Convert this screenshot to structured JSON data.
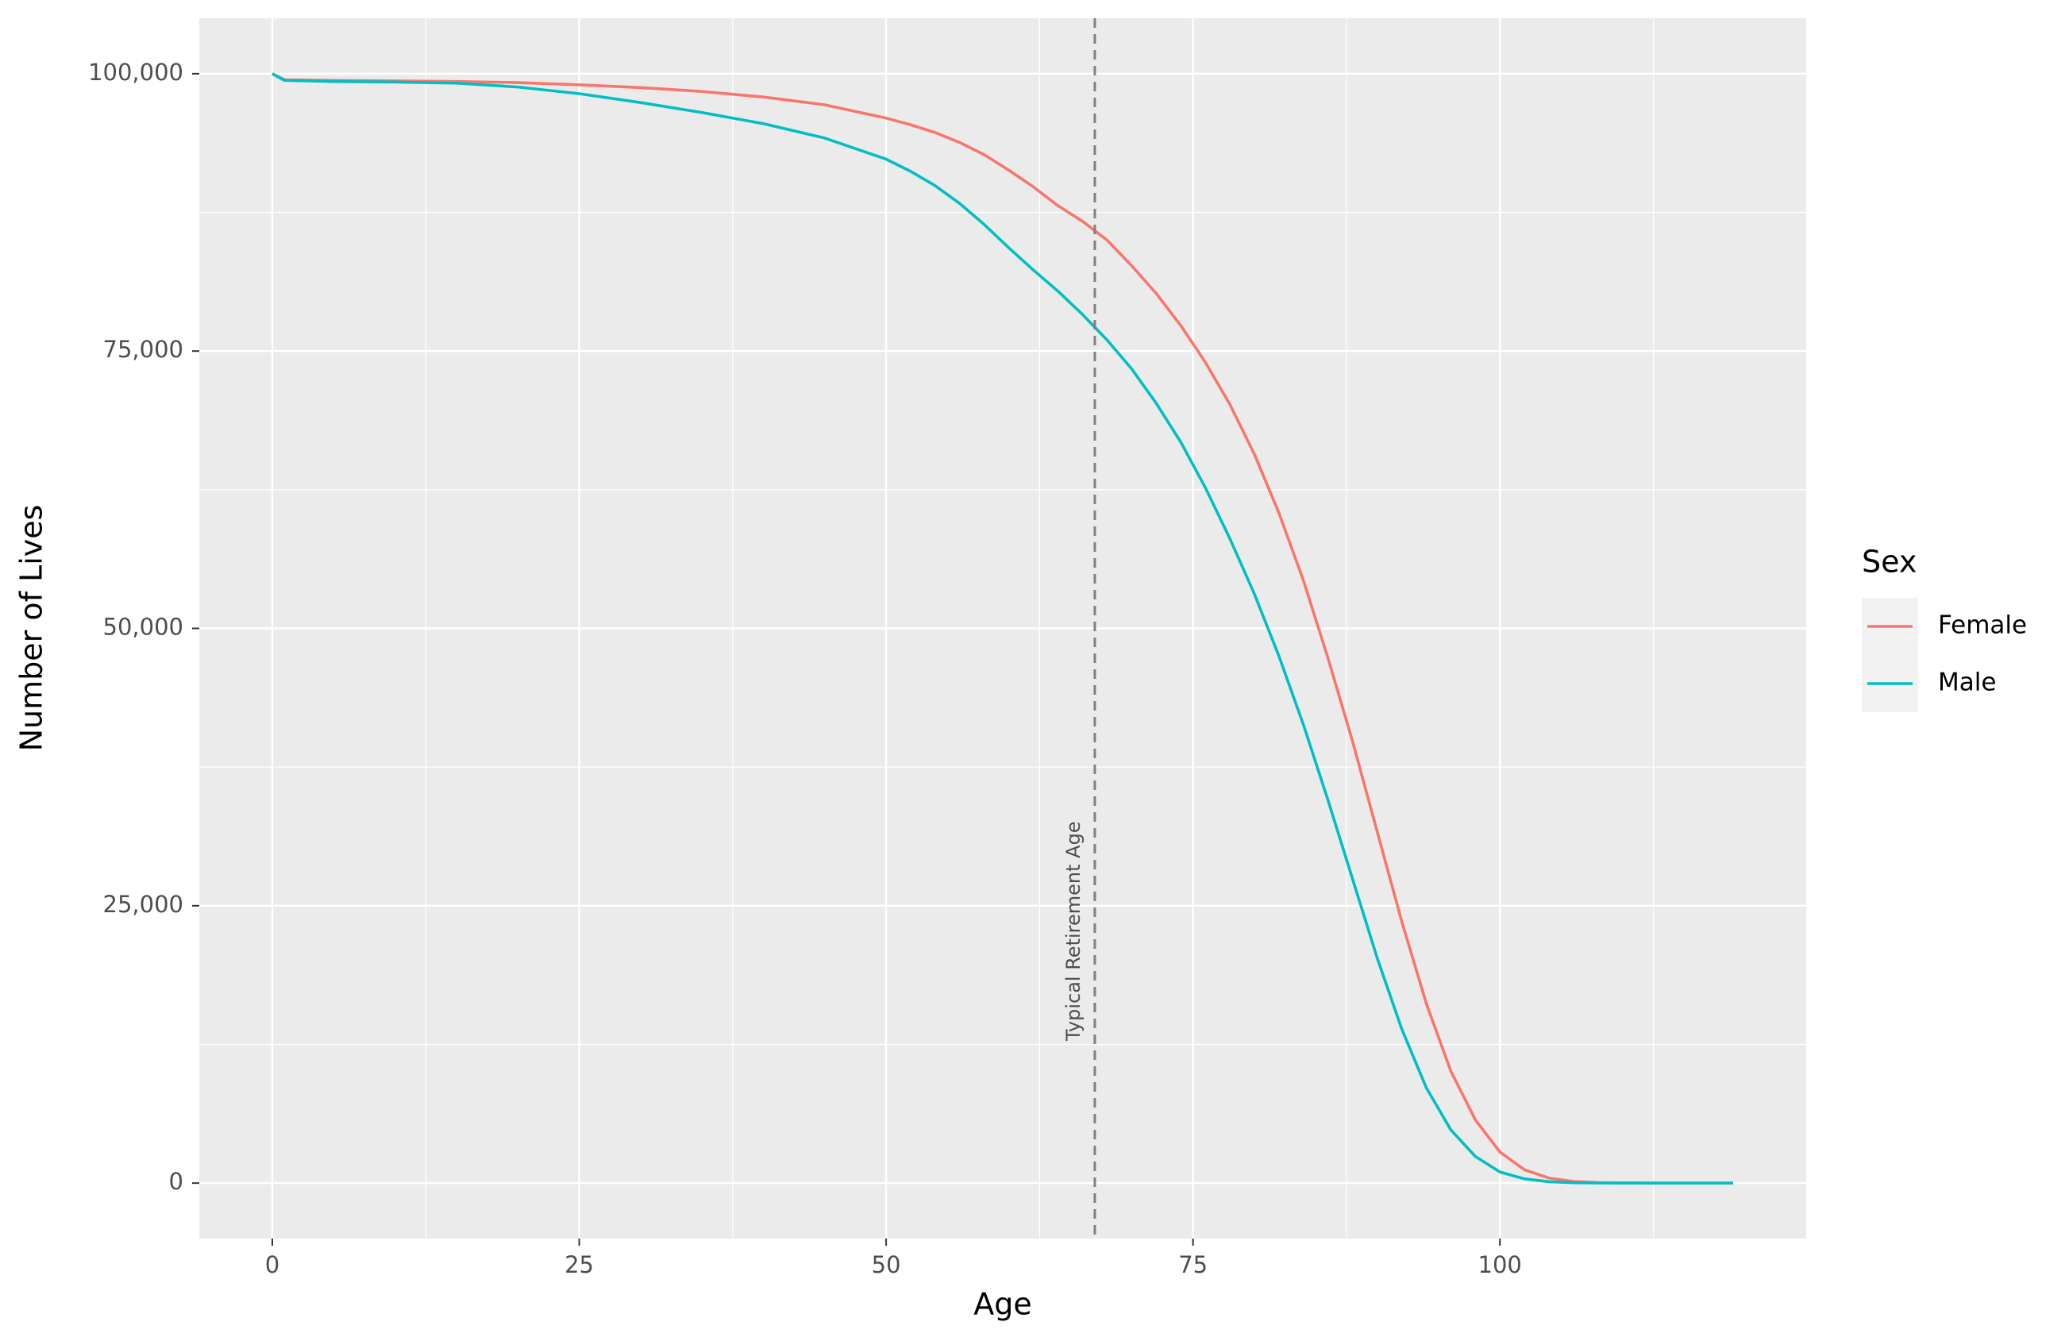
{
  "chart_data": {
    "type": "line",
    "x_label": "Age",
    "y_label": "Number of Lives",
    "x": [
      0,
      1,
      5,
      10,
      15,
      20,
      25,
      30,
      35,
      40,
      45,
      50,
      52,
      54,
      56,
      58,
      60,
      62,
      64,
      66,
      68,
      70,
      72,
      74,
      76,
      78,
      80,
      82,
      84,
      86,
      88,
      90,
      92,
      94,
      96,
      98,
      100,
      102,
      104,
      106,
      108,
      110,
      115,
      119
    ],
    "series": [
      {
        "name": "Female",
        "color": "#f8766d",
        "values": [
          100000,
          99450,
          99400,
          99350,
          99300,
          99200,
          99000,
          98750,
          98400,
          97900,
          97200,
          96000,
          95400,
          94700,
          93800,
          92700,
          91300,
          89800,
          88100,
          86700,
          85000,
          82700,
          80200,
          77300,
          74000,
          70200,
          65700,
          60400,
          54300,
          47300,
          39800,
          31700,
          23600,
          16200,
          10100,
          5700,
          2800,
          1200,
          450,
          150,
          40,
          10,
          0,
          0
        ]
      },
      {
        "name": "Male",
        "color": "#00bfc4",
        "values": [
          100000,
          99400,
          99300,
          99250,
          99150,
          98800,
          98200,
          97400,
          96500,
          95500,
          94200,
          92300,
          91200,
          89900,
          88300,
          86400,
          84300,
          82300,
          80400,
          78300,
          76000,
          73400,
          70300,
          66800,
          62700,
          58100,
          53100,
          47500,
          41300,
          34500,
          27400,
          20300,
          13900,
          8600,
          4800,
          2400,
          1000,
          380,
          120,
          35,
          10,
          2,
          0,
          0
        ]
      }
    ],
    "xlim": [
      -5.95,
      124.95
    ],
    "xticks": [
      0,
      25,
      50,
      75,
      100
    ],
    "x_minor_grid": [
      12.5,
      37.5,
      62.5,
      87.5,
      112.5
    ],
    "ylim": [
      -5000,
      105000
    ],
    "yticks": [
      0,
      {
        "value": 25000,
        "label": "25,000"
      },
      {
        "value": 50000,
        "label": "50,000"
      },
      {
        "value": 75000,
        "label": "75,000"
      },
      {
        "value": 100000,
        "label": "100,000"
      }
    ],
    "y_minor_grid": [
      12500,
      37500,
      62500,
      87500
    ],
    "grid": true,
    "vline": {
      "x": 67,
      "label": "Typical Retirement Age",
      "color": "#7f7f7f",
      "dashed": true
    },
    "legend": {
      "title": "Sex",
      "position": "right"
    }
  }
}
